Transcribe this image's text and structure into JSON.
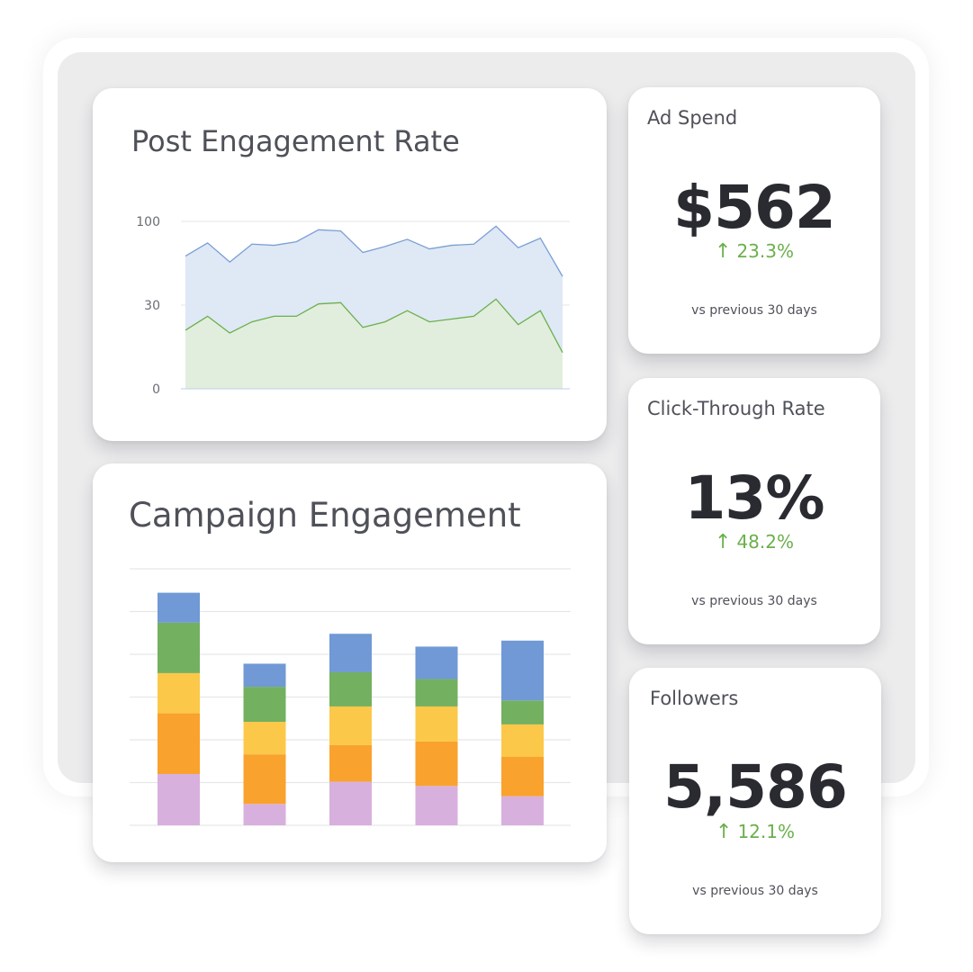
{
  "charts": {
    "engagement": {
      "title": "Post Engagement Rate",
      "ticks": [
        "100",
        "30",
        "0"
      ]
    },
    "campaign": {
      "title": "Campaign Engagement"
    }
  },
  "kpis": {
    "ad_spend": {
      "title": "Ad Spend",
      "value": "$562",
      "arrow": "↑",
      "change": "23.3%",
      "sub": "vs previous 30 days"
    },
    "ctr": {
      "title": "Click-Through Rate",
      "value": "13%",
      "arrow": "↑",
      "change": "48.2%",
      "sub": "vs previous 30 days"
    },
    "followers": {
      "title": "Followers",
      "value": "5,586",
      "arrow": "↑",
      "change": "12.1%",
      "sub": "vs previous 30 days"
    }
  },
  "colors": {
    "positive": "#6ab04c",
    "line_blue": "#7a9fd4",
    "area_blue": "#dfe8f5",
    "line_green": "#6ab04c",
    "area_green": "#e2eedd",
    "seg_blue": "#7099d5",
    "seg_green": "#73b060",
    "seg_yellow": "#fcc84a",
    "seg_orange": "#f9a22e",
    "seg_purple": "#d8b0dd"
  },
  "chart_data": [
    {
      "type": "area",
      "title": "Post Engagement Rate",
      "yticks": [
        0,
        30,
        100
      ],
      "series": [
        {
          "values": [
            71,
            82,
            66,
            81,
            80,
            83,
            93,
            92,
            74,
            79,
            85,
            77,
            80,
            81,
            96,
            78,
            86,
            54
          ]
        },
        {
          "values": [
            21,
            26,
            20,
            24,
            26,
            26,
            31,
            32,
            22,
            24,
            28,
            24,
            25,
            26,
            35,
            23,
            28,
            13
          ]
        }
      ]
    },
    {
      "type": "bar",
      "title": "Campaign Engagement",
      "categories": [
        "",
        "",
        "",
        "",
        ""
      ],
      "ylim": [
        0,
        6
      ],
      "series": [
        {
          "values": [
            1.2,
            0.5,
            1.02,
            0.92,
            0.68
          ]
        },
        {
          "values": [
            1.42,
            1.16,
            0.86,
            1.04,
            0.92
          ]
        },
        {
          "values": [
            0.94,
            0.76,
            0.9,
            0.82,
            0.76
          ]
        },
        {
          "values": [
            1.18,
            0.82,
            0.8,
            0.64,
            0.56
          ]
        },
        {
          "values": [
            0.7,
            0.54,
            0.9,
            0.76,
            1.4
          ]
        }
      ]
    }
  ]
}
